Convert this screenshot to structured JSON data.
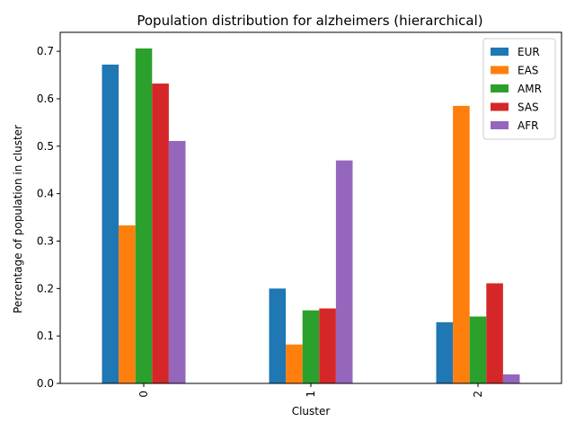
{
  "chart_data": {
    "type": "bar",
    "title": "Population distribution for alzheimers (hierarchical)",
    "xlabel": "Cluster",
    "ylabel": "Percentage of population in cluster",
    "categories": [
      "0",
      "1",
      "2"
    ],
    "ylim": [
      0,
      0.74
    ],
    "yticks": [
      0.0,
      0.1,
      0.2,
      0.3,
      0.4,
      0.5,
      0.6,
      0.7
    ],
    "grid": false,
    "legend_position": "top-right",
    "series": [
      {
        "name": "EUR",
        "color": "#1f77b4",
        "values": [
          0.672,
          0.2,
          0.129
        ]
      },
      {
        "name": "EAS",
        "color": "#ff7f0e",
        "values": [
          0.333,
          0.082,
          0.585
        ]
      },
      {
        "name": "AMR",
        "color": "#2ca02c",
        "values": [
          0.706,
          0.154,
          0.141
        ]
      },
      {
        "name": "SAS",
        "color": "#d62728",
        "values": [
          0.632,
          0.158,
          0.211
        ]
      },
      {
        "name": "AFR",
        "color": "#9467bd",
        "values": [
          0.511,
          0.47,
          0.019
        ]
      }
    ]
  }
}
